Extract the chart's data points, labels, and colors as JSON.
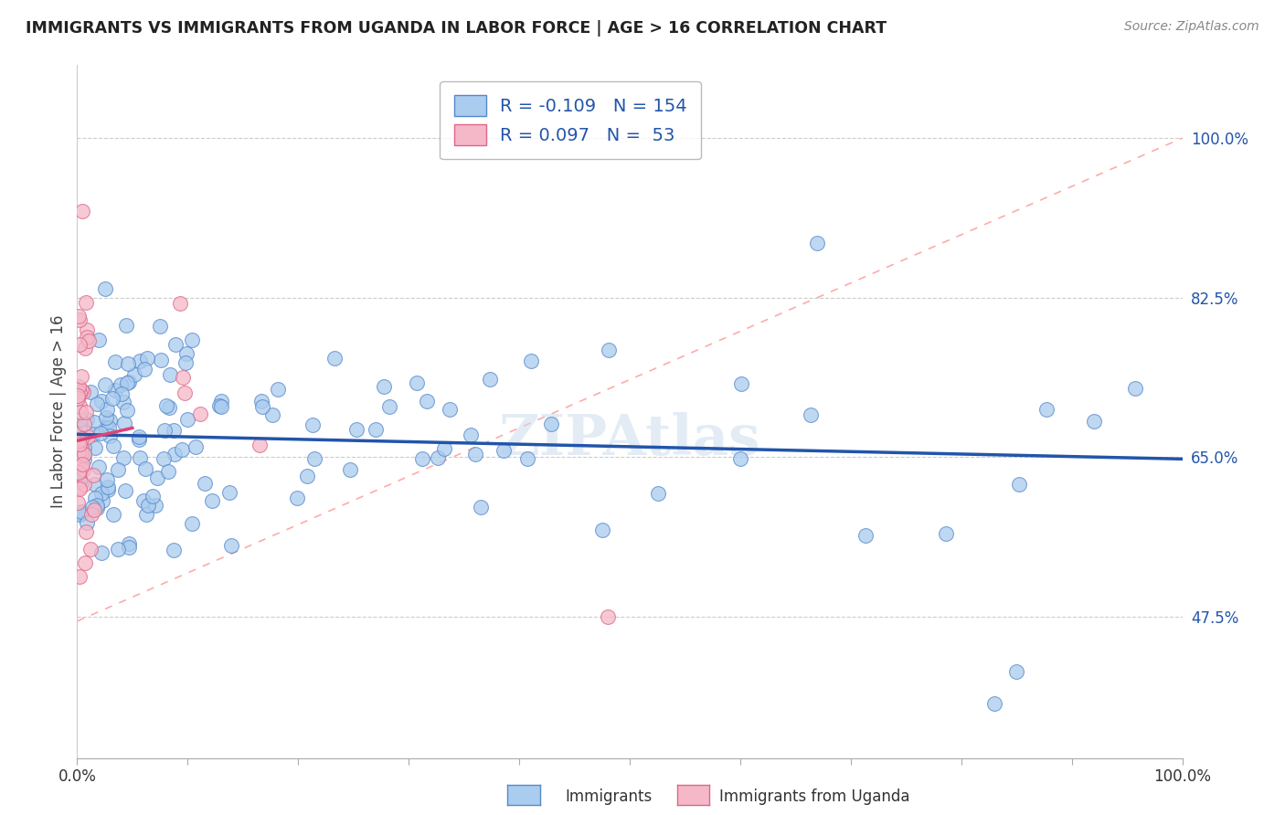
{
  "title": "IMMIGRANTS VS IMMIGRANTS FROM UGANDA IN LABOR FORCE | AGE > 16 CORRELATION CHART",
  "source": "Source: ZipAtlas.com",
  "ylabel": "In Labor Force | Age > 16",
  "xlim": [
    0.0,
    1.0
  ],
  "ylim": [
    0.32,
    1.08
  ],
  "y_ticks_right": [
    0.475,
    0.65,
    0.825,
    1.0
  ],
  "y_tick_labels_right": [
    "47.5%",
    "65.0%",
    "82.5%",
    "100.0%"
  ],
  "blue_fill": "#aaccee",
  "blue_edge": "#5588cc",
  "pink_fill": "#f5b8c8",
  "pink_edge": "#dd6688",
  "blue_line_color": "#2255aa",
  "pink_line_color": "#dd4477",
  "ref_line_color": "#ffaaaa",
  "grid_color": "#cccccc",
  "R_blue": -0.109,
  "N_blue": 154,
  "R_pink": 0.097,
  "N_pink": 53,
  "legend_label_blue": "Immigrants",
  "legend_label_pink": "Immigrants from Uganda",
  "watermark": "ZIPAtlas",
  "blue_trend_x0": 0.0,
  "blue_trend_y0": 0.675,
  "blue_trend_x1": 1.0,
  "blue_trend_y1": 0.648,
  "pink_trend_x0": 0.0,
  "pink_trend_y0": 0.668,
  "pink_trend_x1": 0.05,
  "pink_trend_y1": 0.682
}
